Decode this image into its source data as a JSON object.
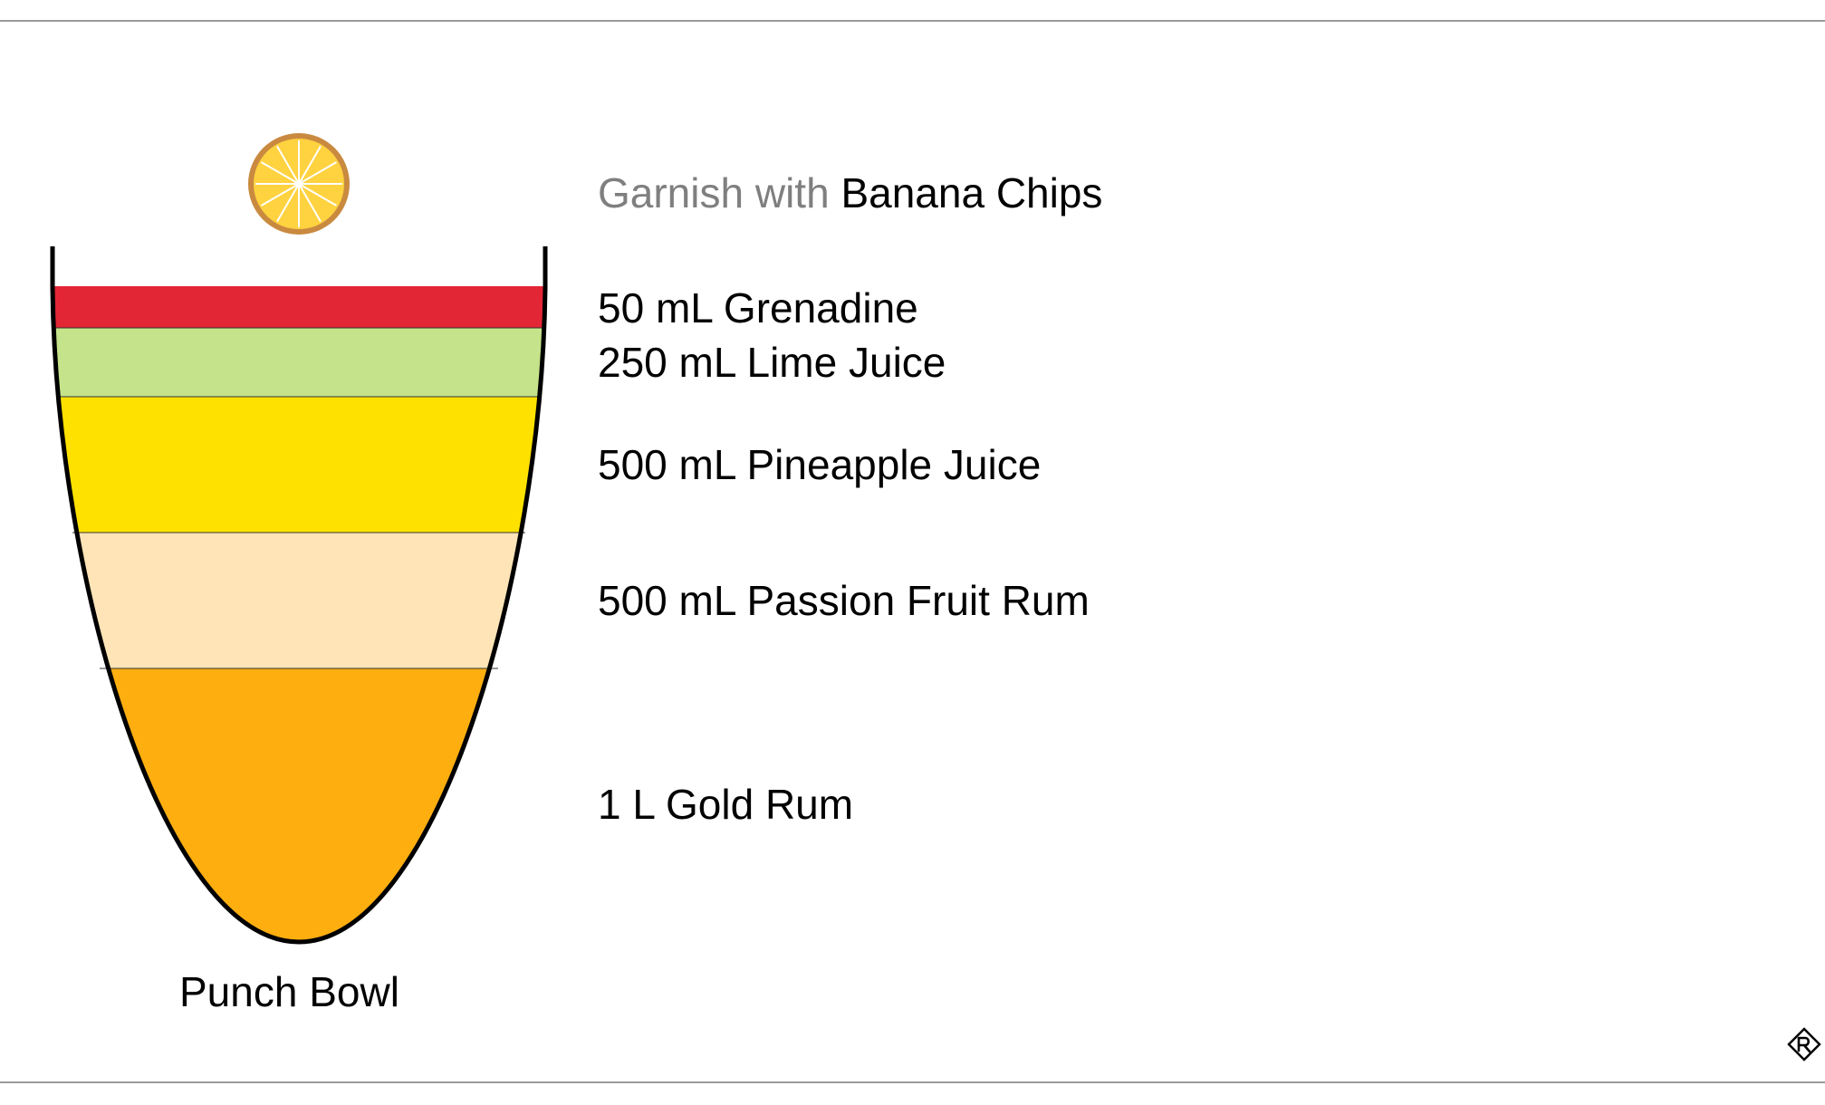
{
  "garnish": {
    "lead": "Garnish with",
    "item": "Banana Chips"
  },
  "vessel": {
    "label": "Punch Bowl"
  },
  "ingredients": [
    {
      "label": "50 mL Grenadine",
      "color": "#E32636"
    },
    {
      "label": "250 mL Lime Juice",
      "color": "#C5E38A"
    },
    {
      "label": "500 mL Pineapple Juice",
      "color": "#FFE100"
    },
    {
      "label": "500 mL Passion Fruit Rum",
      "color": "#FEE4B6"
    },
    {
      "label": "1 L Gold Rum",
      "color": "#FFAE10"
    }
  ],
  "colors": {
    "outline": "#000000",
    "orange_slice_fill": "#FFD23F",
    "orange_slice_rind": "#C98A40",
    "rule": "#9a9a9a",
    "muted_text": "#7f7f7f"
  },
  "icons": {
    "garnish": "orange-slice-icon",
    "brand": "brand-logo-icon"
  }
}
